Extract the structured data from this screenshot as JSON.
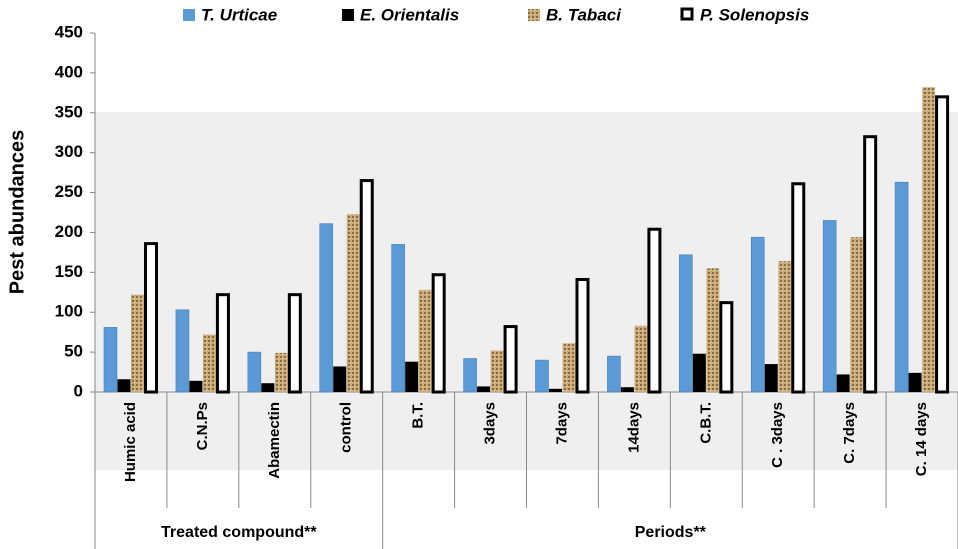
{
  "chart_data": {
    "type": "bar",
    "y_label": "Pest abundances",
    "groups": [
      {
        "name": "Treated compound**",
        "categories": [
          "Humic acid",
          "C.N.Ps",
          "Abamectin",
          "control"
        ]
      },
      {
        "name": "Periods**",
        "categories": [
          "B.T.",
          "3days",
          "7days",
          "14days",
          "C.B.T.",
          "C . 3days",
          "C. 7days",
          "C. 14 days"
        ]
      }
    ],
    "series": [
      {
        "name": "T. Urticae",
        "color": "#5b9bd5",
        "values": [
          81,
          103,
          50,
          211,
          185,
          42,
          40,
          45,
          172,
          194,
          215,
          263
        ]
      },
      {
        "name": "E. Orientalis",
        "color": "#000000",
        "values": [
          16,
          14,
          11,
          32,
          38,
          7,
          4,
          6,
          48,
          35,
          22,
          24
        ]
      },
      {
        "name": "B. Tabaci",
        "color": "#c9ab7c",
        "values": [
          122,
          72,
          49,
          223,
          128,
          52,
          61,
          83,
          155,
          164,
          194,
          382
        ]
      },
      {
        "name": "P. Solenopsis",
        "color": "#ffffff",
        "values": [
          186,
          122,
          122,
          265,
          147,
          82,
          141,
          204,
          112,
          261,
          320,
          370
        ]
      }
    ],
    "ylim": [
      0,
      450
    ],
    "yticks": [
      0,
      50,
      100,
      150,
      200,
      250,
      300,
      350,
      400,
      450
    ]
  }
}
